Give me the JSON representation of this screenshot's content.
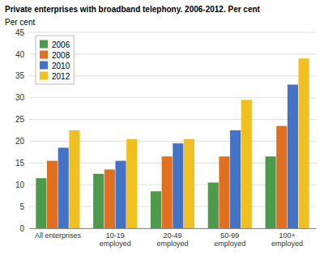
{
  "chart_data": {
    "type": "bar",
    "title": "Private enterprises with broadband telephony. 2006-2012. Per cent",
    "ylabel": "Per cent",
    "categories": [
      "All enterprises",
      "10-19\nemployed",
      "20-49\nemployed",
      "50-99\nemployed",
      "100+\nemployed"
    ],
    "series": [
      {
        "name": "2006",
        "color": "#4d9a4d",
        "values": [
          11.5,
          12.5,
          8.5,
          10.5,
          16.5
        ]
      },
      {
        "name": "2008",
        "color": "#e07020",
        "values": [
          15.5,
          13.5,
          16.5,
          16.5,
          23.5
        ]
      },
      {
        "name": "2010",
        "color": "#4472c4",
        "values": [
          18.5,
          15.5,
          19.5,
          22.5,
          33.0
        ]
      },
      {
        "name": "2012",
        "color": "#f0c020",
        "values": [
          22.5,
          20.5,
          20.5,
          29.5,
          39.0
        ]
      }
    ],
    "ylim": [
      0,
      45
    ],
    "yticks": [
      0,
      5,
      10,
      15,
      20,
      25,
      30,
      35,
      40,
      45
    ],
    "grid": true,
    "legend": "upper left"
  }
}
